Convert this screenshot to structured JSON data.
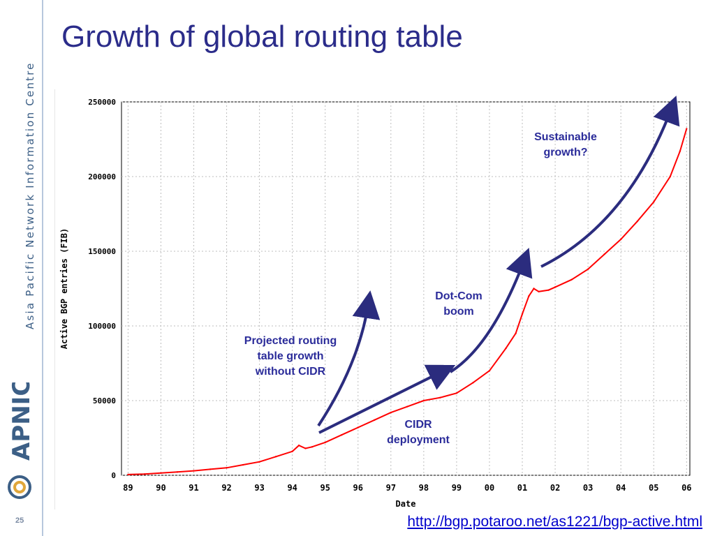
{
  "slide": {
    "title": "Growth of global routing table",
    "number": "25",
    "source_link": "http://bgp.potaroo.net/as1221/bgp-active.html",
    "brand_text": "Asia Pacific Network Information Centre",
    "logo_text": "APNIC"
  },
  "annotations": {
    "projected": "Projected routing table growth without CIDR",
    "cidr": "CIDR deployment",
    "dotcom": "Dot-Com boom",
    "sustainable": "Sustainable growth?"
  },
  "colors": {
    "title": "#2b2c8a",
    "series": "#ff0000",
    "arrow": "#2b2c7e",
    "grid": "#bdbdbd",
    "link": "#0000cc"
  },
  "chart_data": {
    "type": "line",
    "title": "",
    "xlabel": "Date",
    "ylabel": "Active BGP entries (FIB)",
    "x_tick_labels": [
      "89",
      "90",
      "91",
      "92",
      "93",
      "94",
      "95",
      "96",
      "97",
      "98",
      "99",
      "00",
      "01",
      "02",
      "03",
      "04",
      "05",
      "06"
    ],
    "y_tick_labels": [
      "0",
      "50000",
      "100000",
      "150000",
      "200000",
      "250000"
    ],
    "y_ticks": [
      0,
      50000,
      100000,
      150000,
      200000,
      250000
    ],
    "xlim": [
      1988.8,
      2006.1
    ],
    "ylim": [
      0,
      250000
    ],
    "grid": true,
    "series": [
      {
        "color": "#ff0000",
        "x": [
          1989.0,
          1989.5,
          1990.0,
          1990.5,
          1991.0,
          1991.5,
          1992.0,
          1992.5,
          1993.0,
          1993.5,
          1994.0,
          1994.2,
          1994.4,
          1994.6,
          1995.0,
          1995.5,
          1996.0,
          1996.5,
          1997.0,
          1997.5,
          1998.0,
          1998.5,
          1999.0,
          1999.5,
          2000.0,
          2000.5,
          2000.8,
          2001.0,
          2001.2,
          2001.35,
          2001.5,
          2001.8,
          2002.0,
          2002.5,
          2003.0,
          2003.5,
          2004.0,
          2004.5,
          2005.0,
          2005.5,
          2005.8,
          2006.0
        ],
        "y": [
          500,
          800,
          1500,
          2200,
          3000,
          4000,
          5000,
          7000,
          9000,
          12500,
          16000,
          20000,
          18000,
          19000,
          22000,
          27000,
          32000,
          37000,
          42000,
          46000,
          50000,
          52000,
          55000,
          62000,
          70000,
          85000,
          95000,
          108000,
          120000,
          125000,
          123000,
          124000,
          126000,
          131000,
          138000,
          148000,
          158000,
          170000,
          183000,
          200000,
          217000,
          232000
        ]
      }
    ]
  }
}
